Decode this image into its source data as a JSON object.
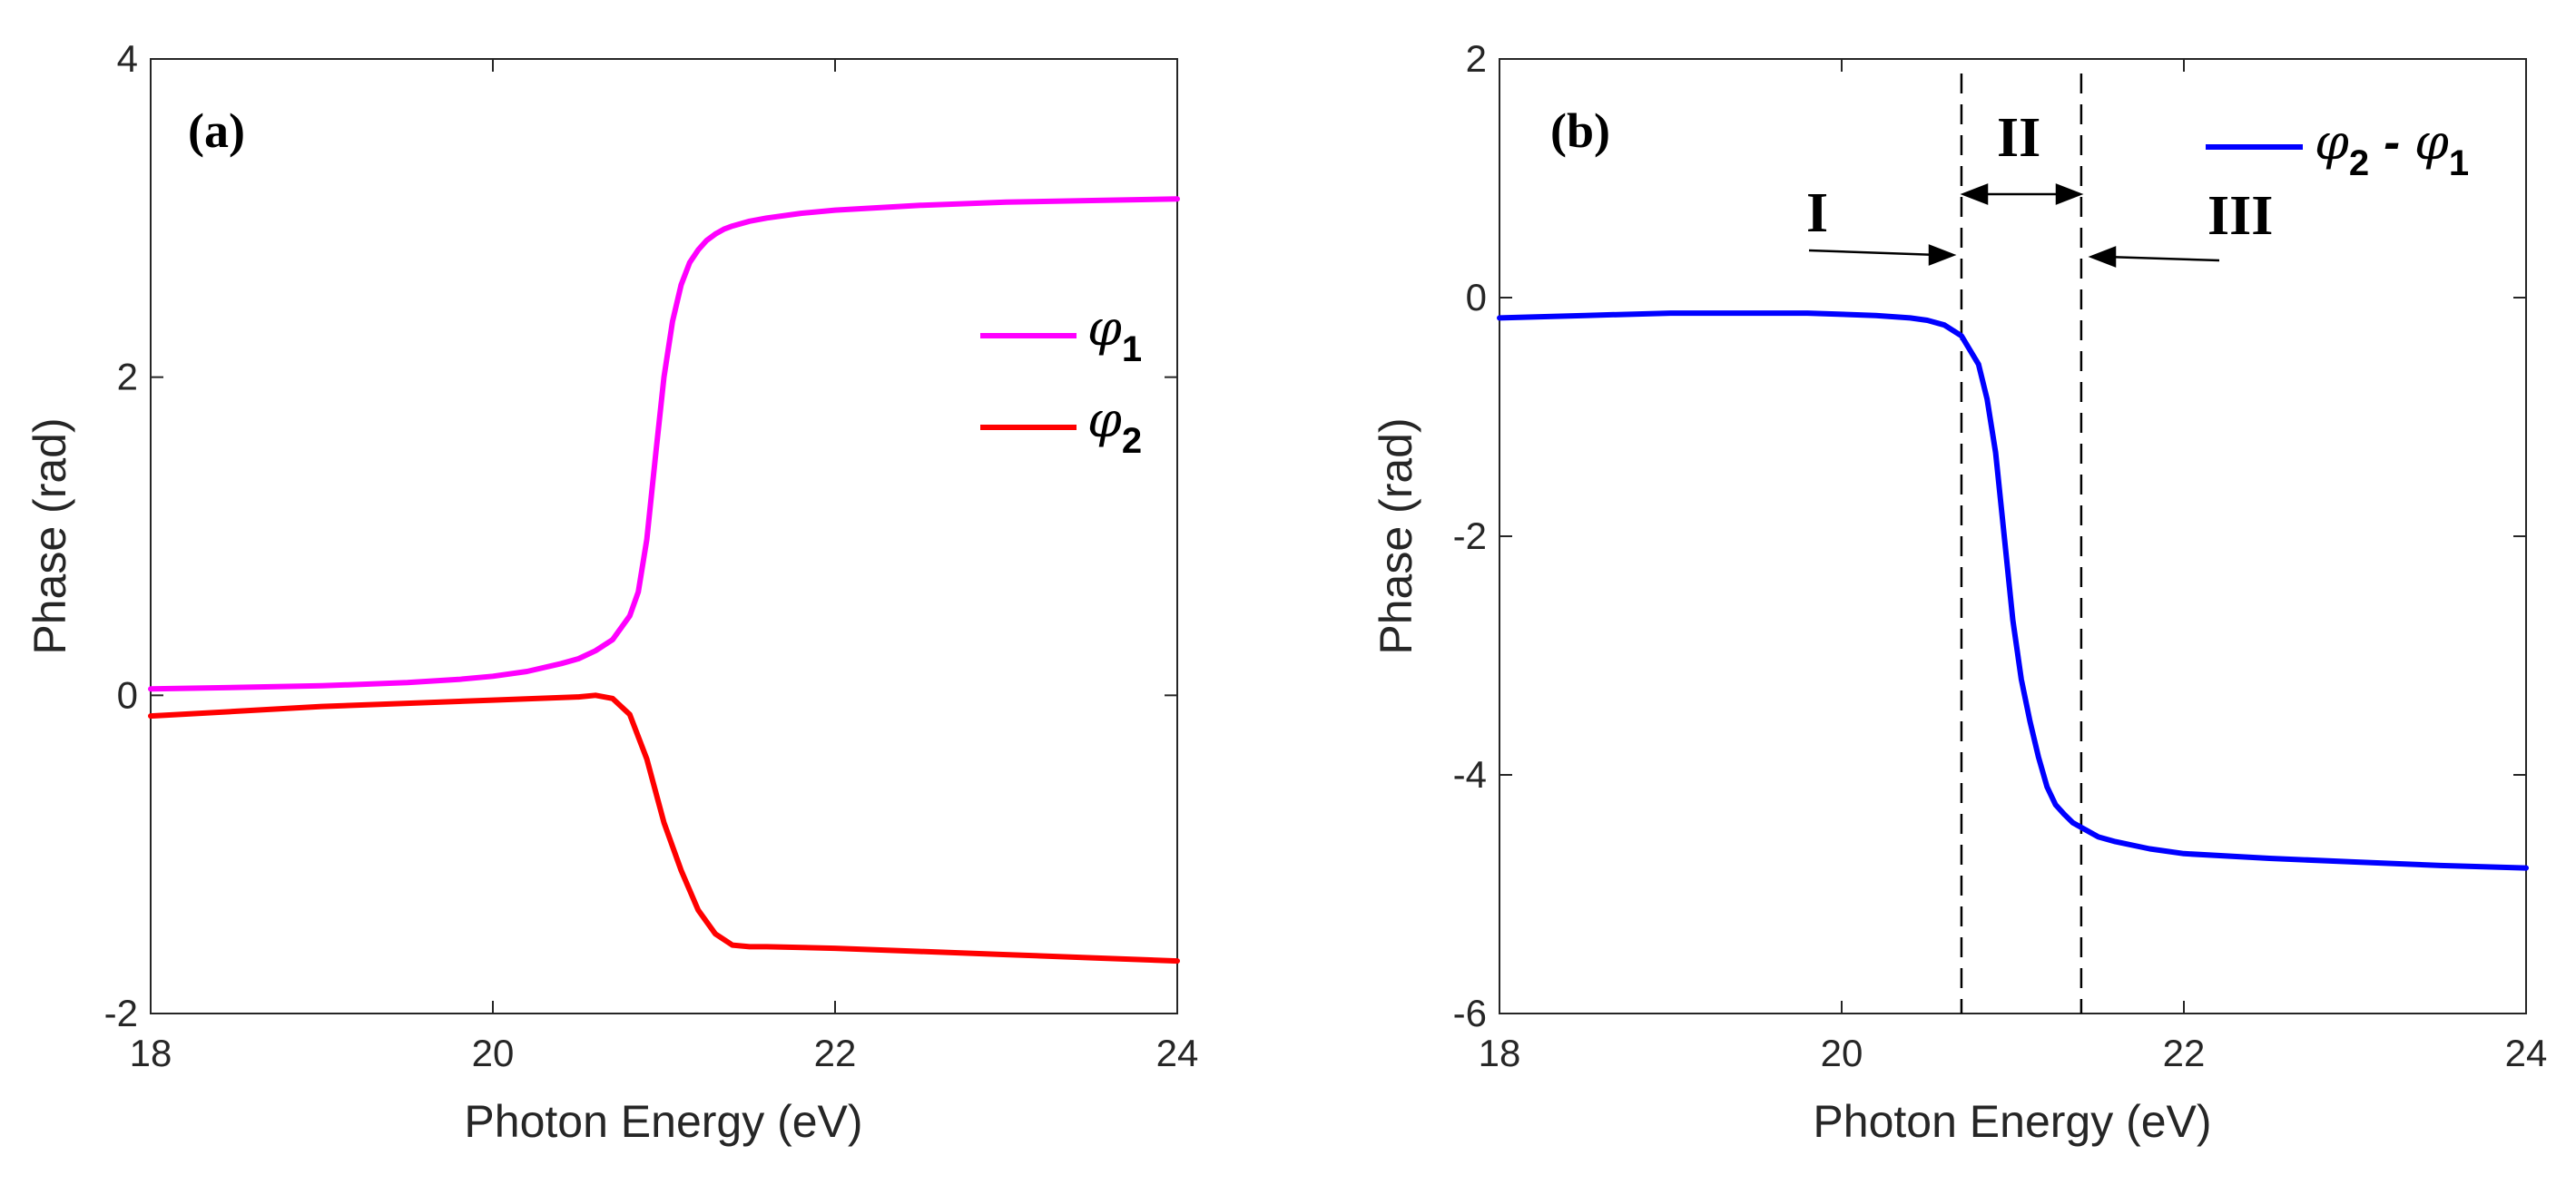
{
  "chart_data": [
    {
      "type": "line",
      "panel_label": "(a)",
      "xlabel": "Photon Energy (eV)",
      "ylabel": "Phase (rad)",
      "xlim": [
        18,
        24
      ],
      "ylim": [
        -2,
        4
      ],
      "xticks": [
        "18",
        "20",
        "22",
        "24"
      ],
      "yticks": [
        "-2",
        "0",
        "2",
        "4"
      ],
      "xtick_values": [
        18,
        20,
        22,
        24
      ],
      "ytick_values": [
        -2,
        0,
        2,
        4
      ],
      "legend": {
        "placement": "right",
        "entries": [
          {
            "symbol": "φ",
            "sub": "1"
          },
          {
            "symbol": "φ",
            "sub": "2"
          }
        ]
      },
      "series": [
        {
          "name": "φ1",
          "color": "#ff00ff",
          "x": [
            18.0,
            18.5,
            19.0,
            19.5,
            19.8,
            20.0,
            20.2,
            20.4,
            20.5,
            20.6,
            20.7,
            20.8,
            20.85,
            20.9,
            20.95,
            21.0,
            21.05,
            21.1,
            21.15,
            21.2,
            21.25,
            21.3,
            21.35,
            21.4,
            21.5,
            21.6,
            21.8,
            22.0,
            22.5,
            23.0,
            23.5,
            24.0
          ],
          "y": [
            0.04,
            0.05,
            0.06,
            0.08,
            0.1,
            0.12,
            0.15,
            0.2,
            0.23,
            0.28,
            0.35,
            0.5,
            0.65,
            0.98,
            1.5,
            2.0,
            2.35,
            2.58,
            2.72,
            2.8,
            2.86,
            2.9,
            2.93,
            2.95,
            2.98,
            3.0,
            3.03,
            3.05,
            3.08,
            3.1,
            3.11,
            3.12
          ]
        },
        {
          "name": "φ2",
          "color": "#ff0000",
          "x": [
            18.0,
            18.5,
            19.0,
            19.5,
            20.0,
            20.5,
            20.6,
            20.7,
            20.8,
            20.9,
            21.0,
            21.1,
            21.2,
            21.3,
            21.4,
            21.5,
            21.6,
            22.0,
            22.5,
            23.0,
            23.5,
            24.0
          ],
          "y": [
            -0.13,
            -0.1,
            -0.07,
            -0.05,
            -0.03,
            -0.01,
            0.0,
            -0.02,
            -0.12,
            -0.4,
            -0.8,
            -1.1,
            -1.35,
            -1.5,
            -1.57,
            -1.58,
            -1.58,
            -1.59,
            -1.61,
            -1.63,
            -1.65,
            -1.67
          ]
        }
      ]
    },
    {
      "type": "line",
      "panel_label": "(b)",
      "xlabel": "Photon Energy (eV)",
      "ylabel": "Phase (rad)",
      "xlim": [
        18,
        24
      ],
      "ylim": [
        -6,
        2
      ],
      "xticks": [
        "18",
        "20",
        "22",
        "24"
      ],
      "yticks": [
        "-6",
        "-4",
        "-2",
        "0",
        "2"
      ],
      "xtick_values": [
        18,
        20,
        22,
        24
      ],
      "ytick_values": [
        -6,
        -4,
        -2,
        0,
        2
      ],
      "legend": {
        "placement": "top-right",
        "entries": [
          {
            "symbol": "φ",
            "sub": "2",
            "op": "-",
            "symbol2": "φ",
            "sub2": "1"
          }
        ]
      },
      "vlines": [
        20.7,
        21.4
      ],
      "regions": [
        "I",
        "II",
        "III"
      ],
      "series": [
        {
          "name": "φ2 - φ1",
          "color": "#0000ff",
          "x": [
            18.0,
            18.5,
            19.0,
            19.5,
            19.8,
            20.0,
            20.2,
            20.4,
            20.5,
            20.6,
            20.7,
            20.8,
            20.85,
            20.9,
            20.95,
            21.0,
            21.05,
            21.1,
            21.15,
            21.2,
            21.25,
            21.3,
            21.35,
            21.4,
            21.5,
            21.6,
            21.8,
            22.0,
            22.5,
            23.0,
            23.5,
            24.0
          ],
          "y": [
            -0.17,
            -0.15,
            -0.13,
            -0.13,
            -0.13,
            -0.14,
            -0.15,
            -0.17,
            -0.19,
            -0.23,
            -0.32,
            -0.56,
            -0.85,
            -1.3,
            -2.0,
            -2.7,
            -3.2,
            -3.55,
            -3.85,
            -4.1,
            -4.25,
            -4.33,
            -4.4,
            -4.44,
            -4.52,
            -4.56,
            -4.62,
            -4.66,
            -4.7,
            -4.73,
            -4.76,
            -4.78
          ]
        }
      ]
    }
  ]
}
